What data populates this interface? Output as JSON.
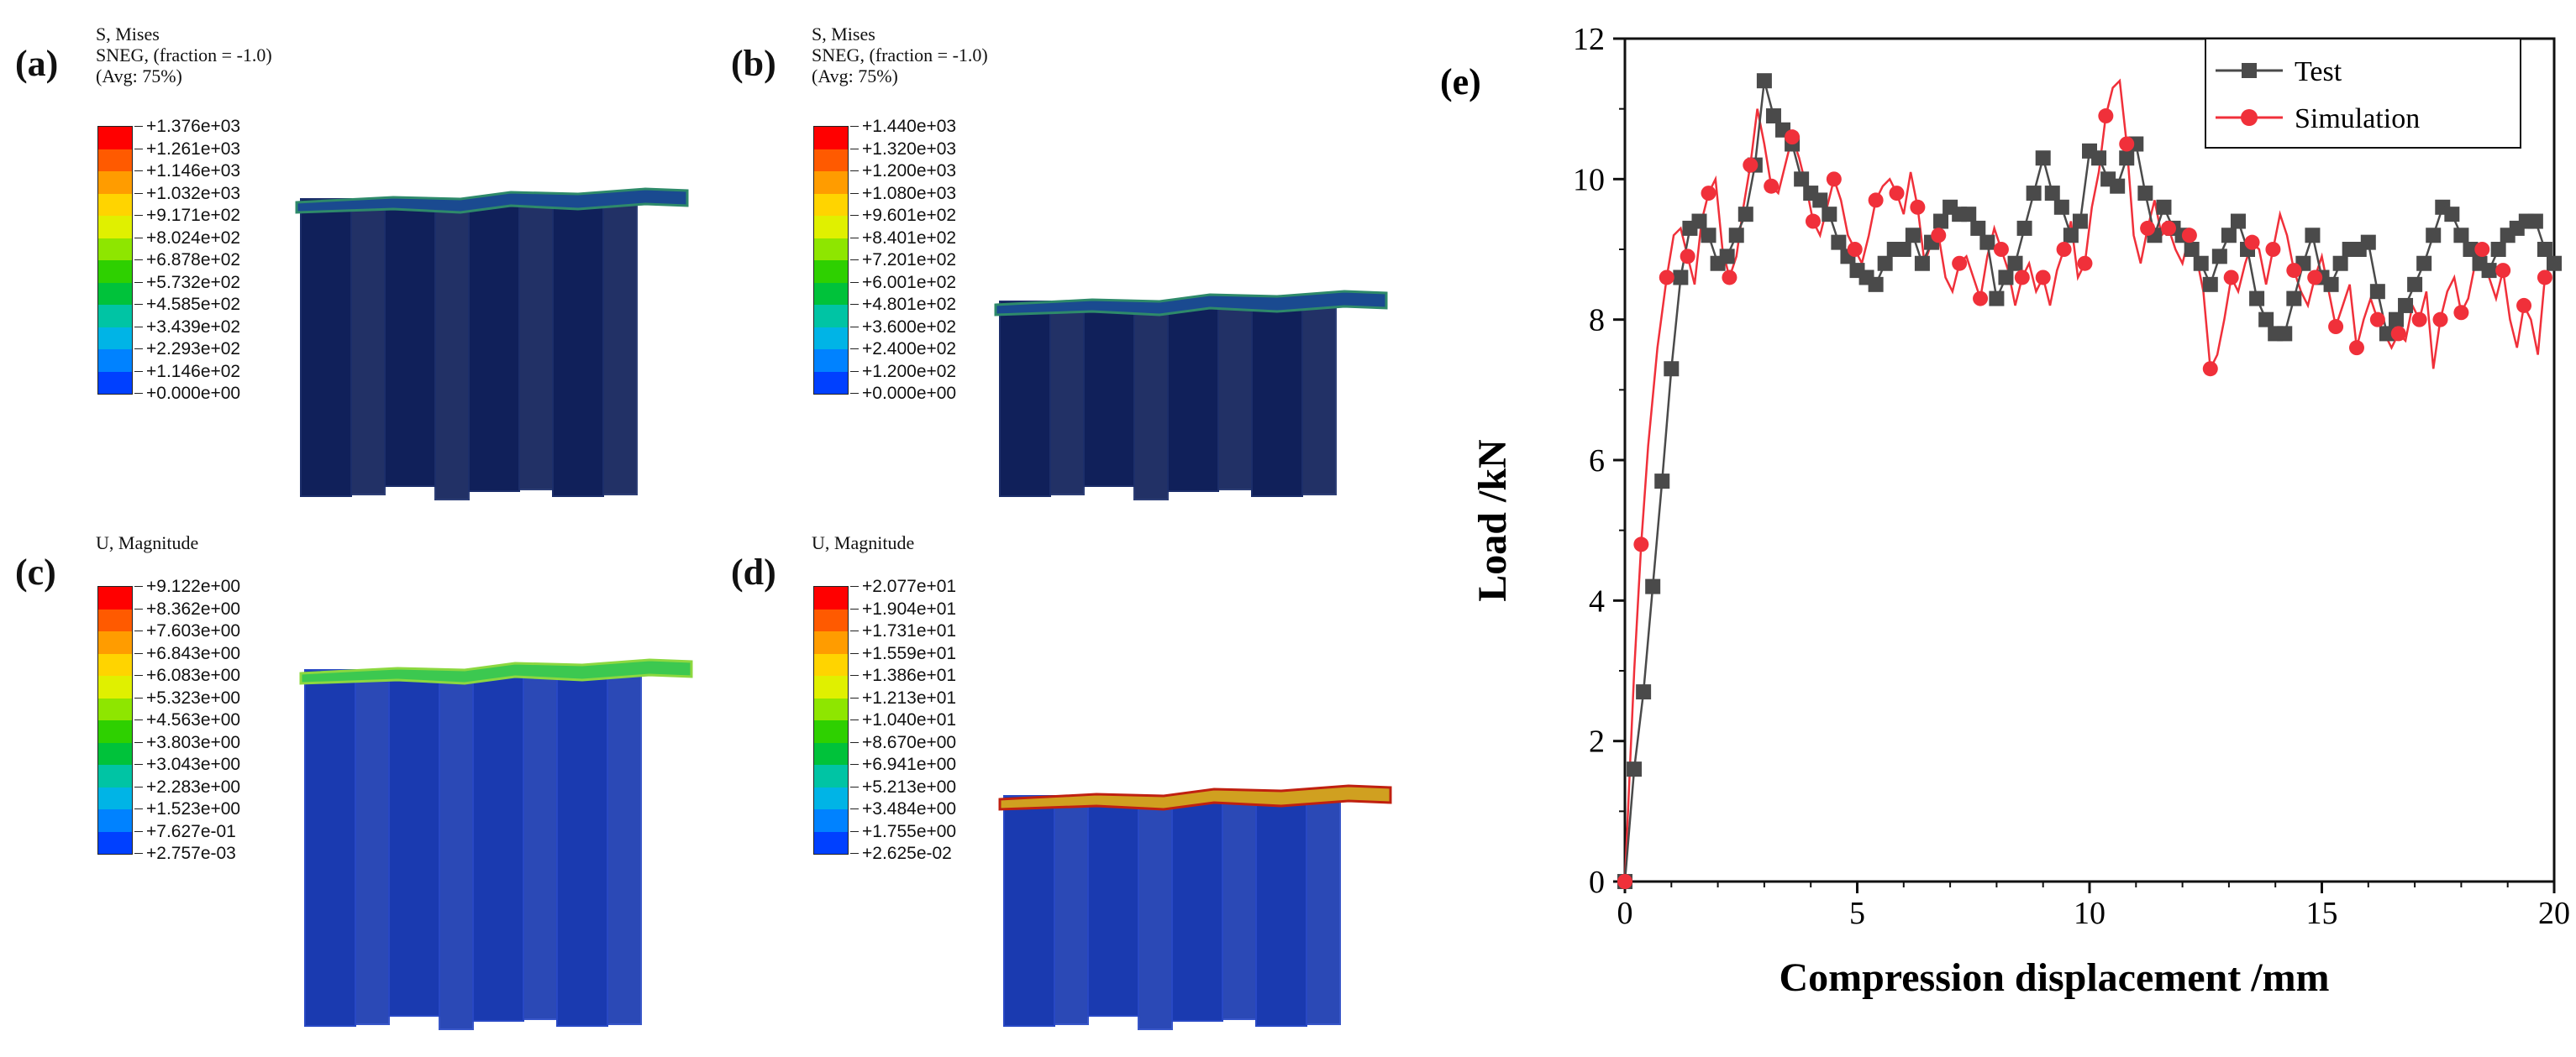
{
  "panels": [
    {
      "label": "(a)",
      "legend_lines": [
        "S, Mises",
        "SNEG, (fraction = -1.0)",
        "(Avg: 75%)"
      ],
      "values": [
        "+1.376e+03",
        "+1.261e+03",
        "+1.146e+03",
        "+1.032e+03",
        "+9.171e+02",
        "+8.024e+02",
        "+6.878e+02",
        "+5.732e+02",
        "+4.585e+02",
        "+3.439e+02",
        "+2.293e+02",
        "+1.146e+02",
        "+0.000e+00"
      ]
    },
    {
      "label": "(b)",
      "legend_lines": [
        "S, Mises",
        "SNEG, (fraction = -1.0)",
        "(Avg: 75%)"
      ],
      "values": [
        "+1.440e+03",
        "+1.320e+03",
        "+1.200e+03",
        "+1.080e+03",
        "+9.601e+02",
        "+8.401e+02",
        "+7.201e+02",
        "+6.001e+02",
        "+4.801e+02",
        "+3.600e+02",
        "+2.400e+02",
        "+1.200e+02",
        "+0.000e+00"
      ]
    },
    {
      "label": "(c)",
      "legend_lines": [
        "U, Magnitude"
      ],
      "values": [
        "+9.122e+00",
        "+8.362e+00",
        "+7.603e+00",
        "+6.843e+00",
        "+6.083e+00",
        "+5.323e+00",
        "+4.563e+00",
        "+3.803e+00",
        "+3.043e+00",
        "+2.283e+00",
        "+1.523e+00",
        "+7.627e-01",
        "+2.757e-03"
      ]
    },
    {
      "label": "(d)",
      "legend_lines": [
        "U, Magnitude"
      ],
      "values": [
        "+2.077e+01",
        "+1.904e+01",
        "+1.731e+01",
        "+1.559e+01",
        "+1.386e+01",
        "+1.213e+01",
        "+1.040e+01",
        "+8.670e+00",
        "+6.941e+00",
        "+5.213e+00",
        "+3.484e+00",
        "+1.755e+00",
        "+2.625e-02"
      ]
    }
  ],
  "contour_colors": [
    "#ff0000",
    "#ff5a00",
    "#ff9c00",
    "#ffd400",
    "#e0f000",
    "#8ee600",
    "#2ed000",
    "#00c23a",
    "#00c4a4",
    "#00b4e6",
    "#0082ff",
    "#0040ff",
    "#0000ff"
  ],
  "colors": {
    "test": "#4a4a4a",
    "simulation": "#f0303a",
    "specimen_dark": "#10205a",
    "specimen_blue": "#1a3ab0"
  },
  "chart_data": {
    "type": "line",
    "panel_label": "(e)",
    "xlabel": "Compression displacement /mm",
    "ylabel": "Load /kN",
    "xlim": [
      0,
      20
    ],
    "ylim": [
      0,
      12
    ],
    "xticks": [
      0,
      5,
      10,
      15,
      20
    ],
    "yticks": [
      0,
      2,
      4,
      6,
      8,
      10,
      12
    ],
    "legend_position": "top-right",
    "series": [
      {
        "name": "Test",
        "marker": "square",
        "x": [
          0,
          0.2,
          0.4,
          0.6,
          0.8,
          1.0,
          1.2,
          1.4,
          1.6,
          1.8,
          2.0,
          2.2,
          2.4,
          2.6,
          2.8,
          3.0,
          3.2,
          3.4,
          3.6,
          3.8,
          4.0,
          4.2,
          4.4,
          4.6,
          4.8,
          5.0,
          5.2,
          5.4,
          5.6,
          5.8,
          6.0,
          6.2,
          6.4,
          6.6,
          6.8,
          7.0,
          7.2,
          7.4,
          7.6,
          7.8,
          8.0,
          8.2,
          8.4,
          8.6,
          8.8,
          9.0,
          9.2,
          9.4,
          9.6,
          9.8,
          10.0,
          10.2,
          10.4,
          10.6,
          10.8,
          11.0,
          11.2,
          11.4,
          11.6,
          11.8,
          12.0,
          12.2,
          12.4,
          12.6,
          12.8,
          13.0,
          13.2,
          13.4,
          13.6,
          13.8,
          14.0,
          14.2,
          14.4,
          14.6,
          14.8,
          15.0,
          15.2,
          15.4,
          15.6,
          15.8,
          16.0,
          16.2,
          16.4,
          16.6,
          16.8,
          17.0,
          17.2,
          17.4,
          17.6,
          17.8,
          18.0,
          18.2,
          18.4,
          18.6,
          18.8,
          19.0,
          19.2,
          19.4,
          19.6,
          19.8,
          20.0
        ],
        "y": [
          0,
          1.6,
          2.7,
          4.2,
          5.7,
          7.3,
          8.6,
          9.3,
          9.4,
          9.2,
          8.8,
          8.9,
          9.2,
          9.5,
          10.2,
          11.4,
          10.9,
          10.7,
          10.5,
          10.0,
          9.8,
          9.7,
          9.5,
          9.1,
          8.9,
          8.7,
          8.6,
          8.5,
          8.8,
          9.0,
          9.0,
          9.2,
          8.8,
          9.1,
          9.4,
          9.6,
          9.5,
          9.5,
          9.3,
          9.1,
          8.3,
          8.6,
          8.8,
          9.3,
          9.8,
          10.3,
          9.8,
          9.6,
          9.2,
          9.4,
          10.4,
          10.3,
          10.0,
          9.9,
          10.3,
          10.5,
          9.8,
          9.2,
          9.6,
          9.3,
          9.2,
          9.0,
          8.8,
          8.5,
          8.9,
          9.2,
          9.4,
          9.0,
          8.3,
          8.0,
          7.8,
          7.8,
          8.3,
          8.8,
          9.2,
          8.6,
          8.5,
          8.8,
          9.0,
          9.0,
          9.1,
          8.4,
          7.8,
          8.0,
          8.2,
          8.5,
          8.8,
          9.2,
          9.6,
          9.5,
          9.2,
          9.0,
          8.8,
          8.7,
          9.0,
          9.2,
          9.3,
          9.4,
          9.4,
          9.0,
          8.8
        ]
      },
      {
        "name": "Simulation",
        "marker": "circle",
        "x": [
          0,
          0.1,
          0.2,
          0.35,
          0.5,
          0.7,
          0.9,
          1.05,
          1.2,
          1.35,
          1.5,
          1.65,
          1.8,
          1.95,
          2.1,
          2.25,
          2.4,
          2.55,
          2.7,
          2.85,
          3.0,
          3.15,
          3.3,
          3.45,
          3.6,
          3.75,
          3.9,
          4.05,
          4.2,
          4.35,
          4.5,
          4.65,
          4.8,
          4.95,
          5.1,
          5.25,
          5.4,
          5.55,
          5.7,
          5.85,
          6.0,
          6.15,
          6.3,
          6.45,
          6.6,
          6.75,
          6.9,
          7.05,
          7.2,
          7.35,
          7.5,
          7.65,
          7.8,
          7.95,
          8.1,
          8.25,
          8.4,
          8.55,
          8.7,
          8.85,
          9.0,
          9.15,
          9.3,
          9.45,
          9.6,
          9.75,
          9.9,
          10.05,
          10.2,
          10.35,
          10.5,
          10.65,
          10.8,
          10.95,
          11.1,
          11.25,
          11.4,
          11.55,
          11.7,
          11.85,
          12.0,
          12.15,
          12.3,
          12.45,
          12.6,
          12.75,
          12.9,
          13.05,
          13.2,
          13.35,
          13.5,
          13.65,
          13.8,
          13.95,
          14.1,
          14.25,
          14.4,
          14.55,
          14.7,
          14.85,
          15.0,
          15.15,
          15.3,
          15.45,
          15.6,
          15.75,
          15.9,
          16.05,
          16.2,
          16.35,
          16.5,
          16.65,
          16.8,
          16.95,
          17.1,
          17.25,
          17.4,
          17.55,
          17.7,
          17.85,
          18.0,
          18.15,
          18.3,
          18.45,
          18.6,
          18.75,
          18.9,
          19.05,
          19.2,
          19.35,
          19.5,
          19.65,
          19.8,
          20.0
        ],
        "y": [
          0,
          1.5,
          3.0,
          4.8,
          6.2,
          7.6,
          8.6,
          9.2,
          9.3,
          8.9,
          8.5,
          9.4,
          9.8,
          10.0,
          9.0,
          8.6,
          8.9,
          9.6,
          10.2,
          11.0,
          10.5,
          9.9,
          9.8,
          10.2,
          10.6,
          10.3,
          9.9,
          9.4,
          9.2,
          9.6,
          10.0,
          9.7,
          9.2,
          9.0,
          8.8,
          9.2,
          9.7,
          9.9,
          10.0,
          9.8,
          9.5,
          10.1,
          9.6,
          8.8,
          9.1,
          9.2,
          8.6,
          8.4,
          8.8,
          8.9,
          8.6,
          8.3,
          8.9,
          9.3,
          9.0,
          8.7,
          8.2,
          8.6,
          8.8,
          8.4,
          8.6,
          8.2,
          8.7,
          9.0,
          9.4,
          8.6,
          8.8,
          9.6,
          10.1,
          10.9,
          11.3,
          11.4,
          10.5,
          9.2,
          8.8,
          9.3,
          9.7,
          9.2,
          9.3,
          9.0,
          8.8,
          9.2,
          8.9,
          8.4,
          7.3,
          7.5,
          8.0,
          8.6,
          8.4,
          8.8,
          9.1,
          9.0,
          8.5,
          9.0,
          9.5,
          9.2,
          8.7,
          8.4,
          8.2,
          8.6,
          8.9,
          8.4,
          7.9,
          8.2,
          8.5,
          7.6,
          8.0,
          8.3,
          8.0,
          7.8,
          7.6,
          7.8,
          7.7,
          8.2,
          8.0,
          8.4,
          7.3,
          8.0,
          8.4,
          8.6,
          8.1,
          8.3,
          8.8,
          9.0,
          8.6,
          8.3,
          8.7,
          8.0,
          7.6,
          8.2,
          8.0,
          7.5,
          8.6,
          8.9
        ]
      }
    ]
  }
}
